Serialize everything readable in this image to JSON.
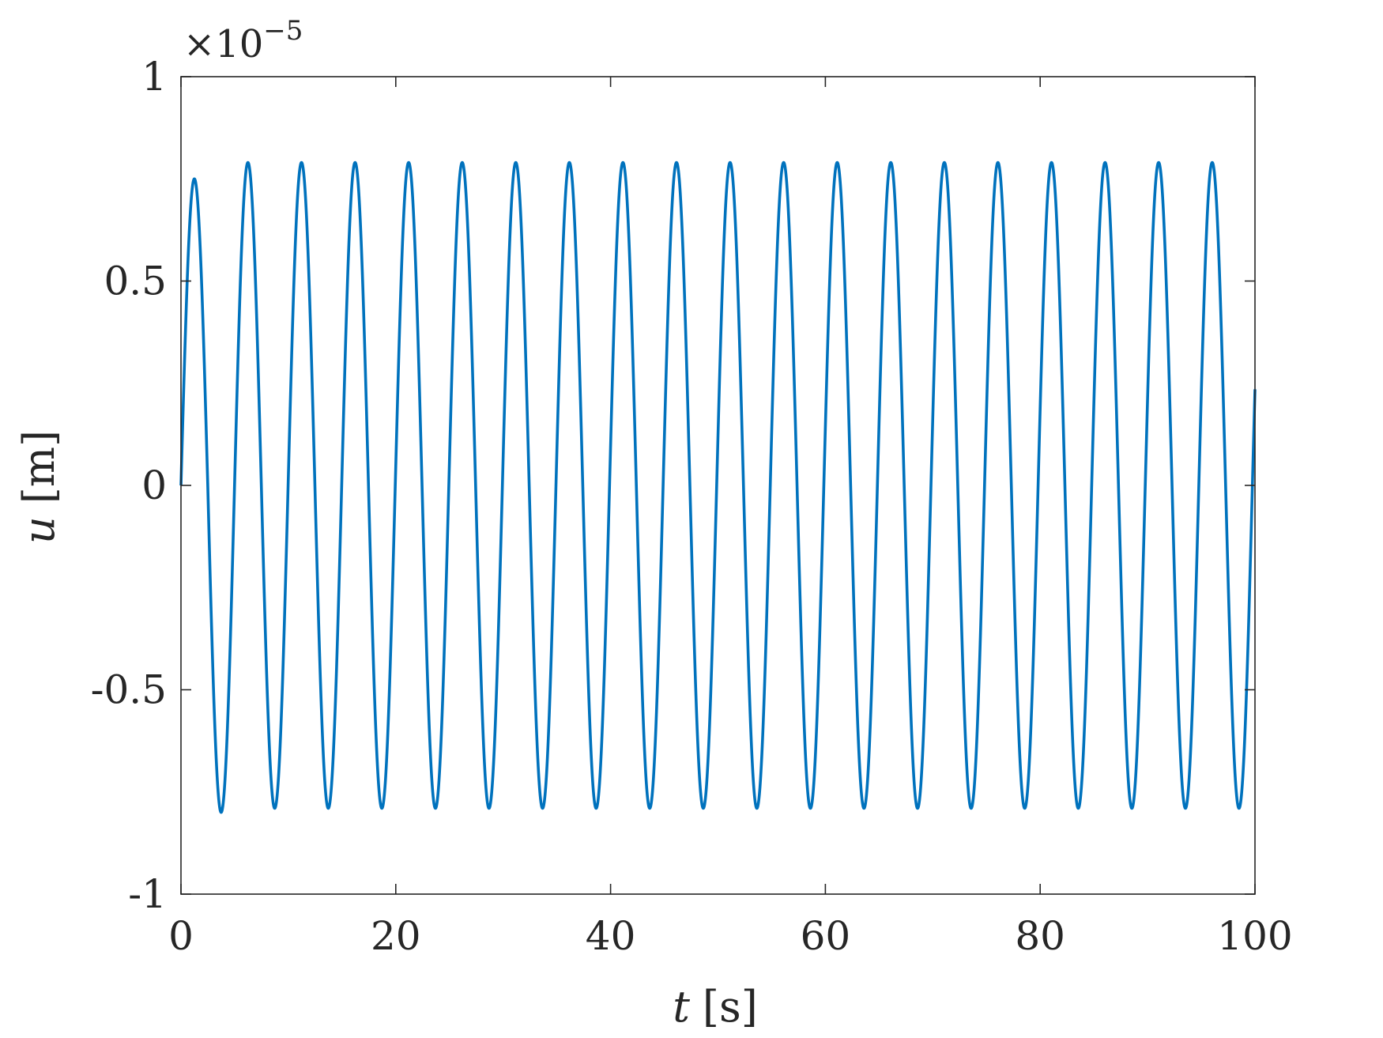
{
  "chart_data": {
    "type": "line",
    "xlabel_var": "t",
    "xlabel_unit": "[s]",
    "ylabel_var": "u",
    "ylabel_unit": "[m]",
    "y_exponent_label": "×10",
    "y_exponent_power": "−5",
    "xlim": [
      0,
      100
    ],
    "ylim": [
      -1,
      1
    ],
    "x_ticks": [
      0,
      20,
      40,
      60,
      80,
      100
    ],
    "x_tick_labels": [
      "0",
      "20",
      "40",
      "60",
      "80",
      "100"
    ],
    "y_ticks": [
      -1,
      -0.5,
      0,
      0.5,
      1
    ],
    "y_tick_labels": [
      "-1",
      "-0.5",
      "0",
      "0.5",
      "1"
    ],
    "grid": false,
    "series": [
      {
        "color": "#0072BD",
        "period": 4.988,
        "amplitude_steady": 0.79,
        "first_peak": 0.75,
        "first_trough": -0.8,
        "offset": 0.0
      }
    ]
  }
}
